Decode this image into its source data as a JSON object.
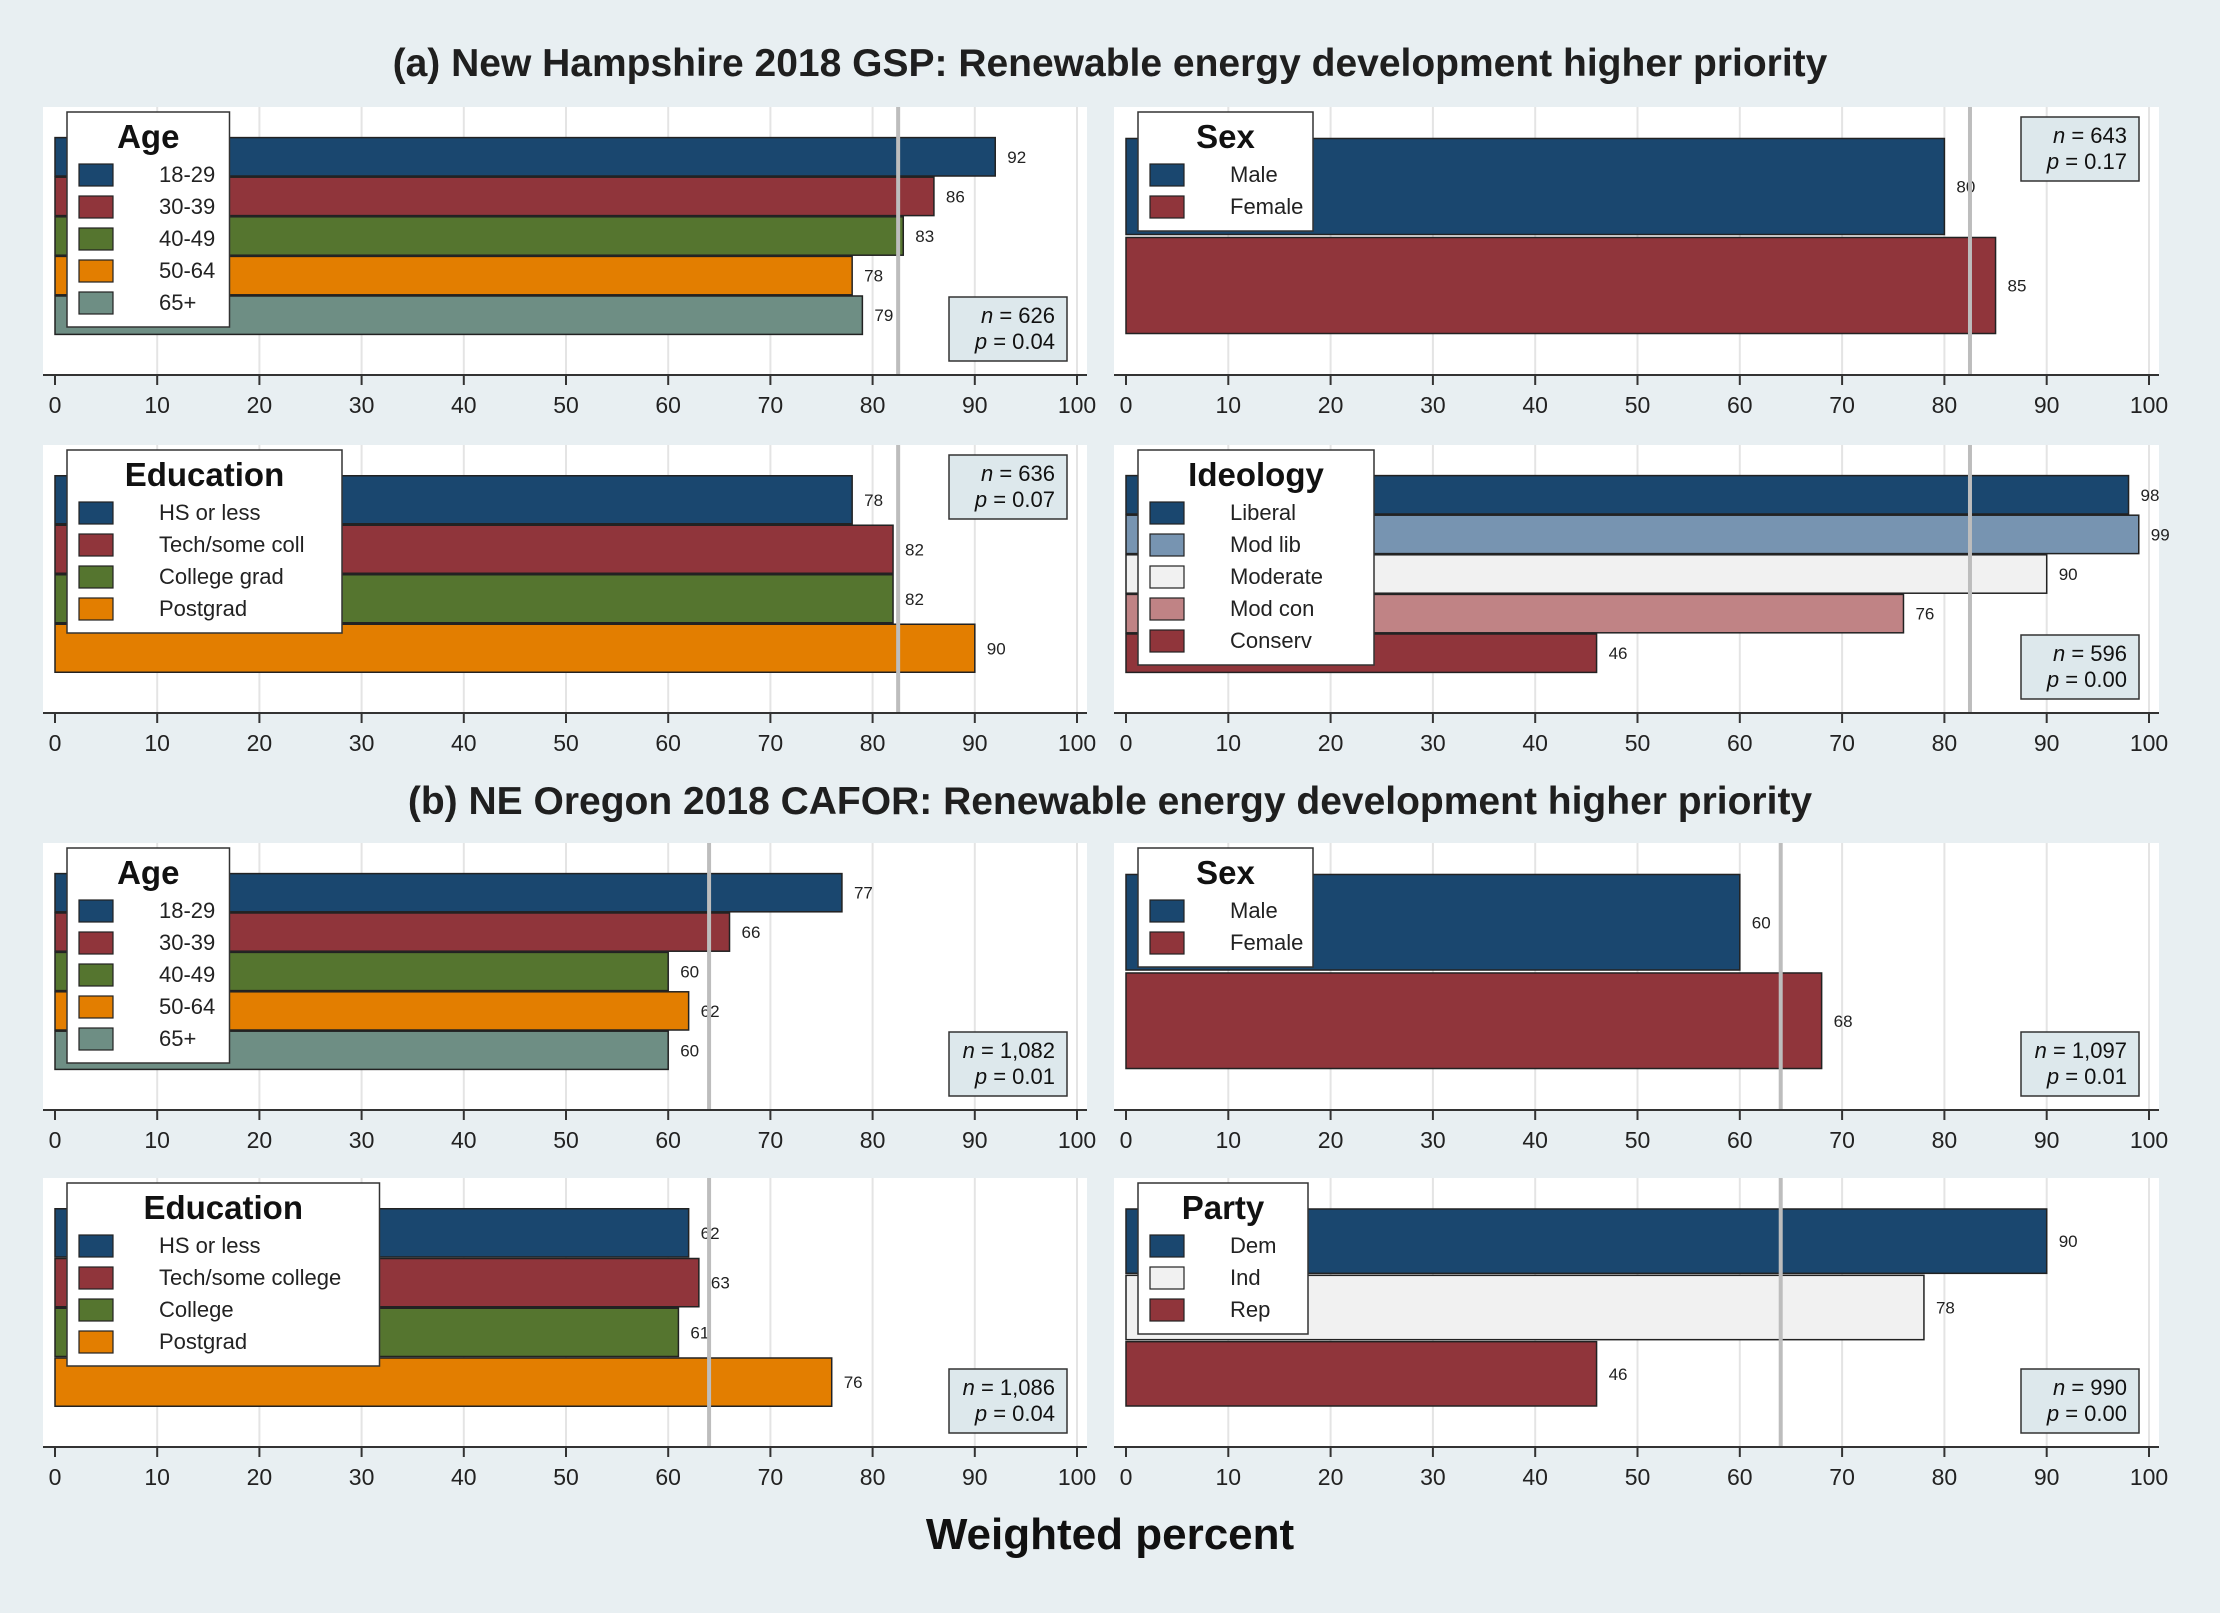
{
  "titles": {
    "section_a": "(a) New Hampshire 2018 GSP: Renewable energy development higher priority",
    "section_b": "(b) NE Oregon 2018 CAFOR: Renewable energy development higher priority",
    "xlabel": "Weighted percent"
  },
  "colors": {
    "blue": "#1a476f",
    "red": "#90353b",
    "green": "#55752f",
    "orange": "#e37e00",
    "gray": "#6e8e84",
    "lightblue": "#7794b1",
    "white": "#f1f1f1",
    "pink": "#c08385",
    "refline": "#bdbdbd",
    "grid": "#e4e4e4",
    "stats_bg": "#dde8ec"
  },
  "chart_data": [
    {
      "type": "bar",
      "panel": "a-age",
      "legend_title": "Age",
      "xlim": [
        0,
        100
      ],
      "refline": 82.5,
      "n": "626",
      "p": "0.04",
      "stats_pos": "bottom-right",
      "series": [
        {
          "name": "18-29",
          "value": 92,
          "color": "blue"
        },
        {
          "name": "30-39",
          "value": 86,
          "color": "red"
        },
        {
          "name": "40-49",
          "value": 83,
          "color": "green"
        },
        {
          "name": "50-64",
          "value": 78,
          "color": "orange"
        },
        {
          "name": "65+",
          "value": 79,
          "color": "gray"
        }
      ]
    },
    {
      "type": "bar",
      "panel": "a-sex",
      "legend_title": "Sex",
      "xlim": [
        0,
        100
      ],
      "refline": 82.5,
      "n": "643",
      "p": "0.17",
      "stats_pos": "top-right",
      "series": [
        {
          "name": "Male",
          "value": 80,
          "color": "blue"
        },
        {
          "name": "Female",
          "value": 85,
          "color": "red"
        }
      ]
    },
    {
      "type": "bar",
      "panel": "a-education",
      "legend_title": "Education",
      "xlim": [
        0,
        100
      ],
      "refline": 82.5,
      "n": "636",
      "p": "0.07",
      "stats_pos": "top-right",
      "series": [
        {
          "name": "HS or less",
          "value": 78,
          "color": "blue"
        },
        {
          "name": "Tech/some coll",
          "value": 82,
          "color": "red"
        },
        {
          "name": "College grad",
          "value": 82,
          "color": "green"
        },
        {
          "name": "Postgrad",
          "value": 90,
          "color": "orange"
        }
      ]
    },
    {
      "type": "bar",
      "panel": "a-ideology",
      "legend_title": "Ideology",
      "xlim": [
        0,
        100
      ],
      "refline": 82.5,
      "n": "596",
      "p": "0.00",
      "stats_pos": "bottom-right",
      "series": [
        {
          "name": "Liberal",
          "value": 98,
          "color": "blue"
        },
        {
          "name": "Mod lib",
          "value": 99,
          "color": "lightblue"
        },
        {
          "name": "Moderate",
          "value": 90,
          "color": "white"
        },
        {
          "name": "Mod con",
          "value": 76,
          "color": "pink"
        },
        {
          "name": "Conserv",
          "value": 46,
          "color": "red"
        }
      ]
    },
    {
      "type": "bar",
      "panel": "b-age",
      "legend_title": "Age",
      "xlim": [
        0,
        100
      ],
      "refline": 64,
      "n": "1,082",
      "p": "0.01",
      "stats_pos": "bottom-right",
      "series": [
        {
          "name": "18-29",
          "value": 77,
          "color": "blue"
        },
        {
          "name": "30-39",
          "value": 66,
          "color": "red"
        },
        {
          "name": "40-49",
          "value": 60,
          "color": "green"
        },
        {
          "name": "50-64",
          "value": 62,
          "color": "orange"
        },
        {
          "name": "65+",
          "value": 60,
          "color": "gray"
        }
      ]
    },
    {
      "type": "bar",
      "panel": "b-sex",
      "legend_title": "Sex",
      "xlim": [
        0,
        100
      ],
      "refline": 64,
      "n": "1,097",
      "p": "0.01",
      "stats_pos": "bottom-right",
      "series": [
        {
          "name": "Male",
          "value": 60,
          "color": "blue"
        },
        {
          "name": "Female",
          "value": 68,
          "color": "red"
        }
      ]
    },
    {
      "type": "bar",
      "panel": "b-education",
      "legend_title": "Education",
      "xlim": [
        0,
        100
      ],
      "refline": 64,
      "n": "1,086",
      "p": "0.04",
      "stats_pos": "bottom-right",
      "series": [
        {
          "name": "HS or less",
          "value": 62,
          "color": "blue"
        },
        {
          "name": "Tech/some college",
          "value": 63,
          "color": "red"
        },
        {
          "name": "College",
          "value": 61,
          "color": "green"
        },
        {
          "name": "Postgrad",
          "value": 76,
          "color": "orange"
        }
      ]
    },
    {
      "type": "bar",
      "panel": "b-party",
      "legend_title": "Party",
      "xlim": [
        0,
        100
      ],
      "refline": 64,
      "n": "990",
      "p": "0.00",
      "stats_pos": "bottom-right",
      "series": [
        {
          "name": "Dem",
          "value": 90,
          "color": "blue"
        },
        {
          "name": "Ind",
          "value": 78,
          "color": "white"
        },
        {
          "name": "Rep",
          "value": 46,
          "color": "red"
        }
      ]
    }
  ]
}
